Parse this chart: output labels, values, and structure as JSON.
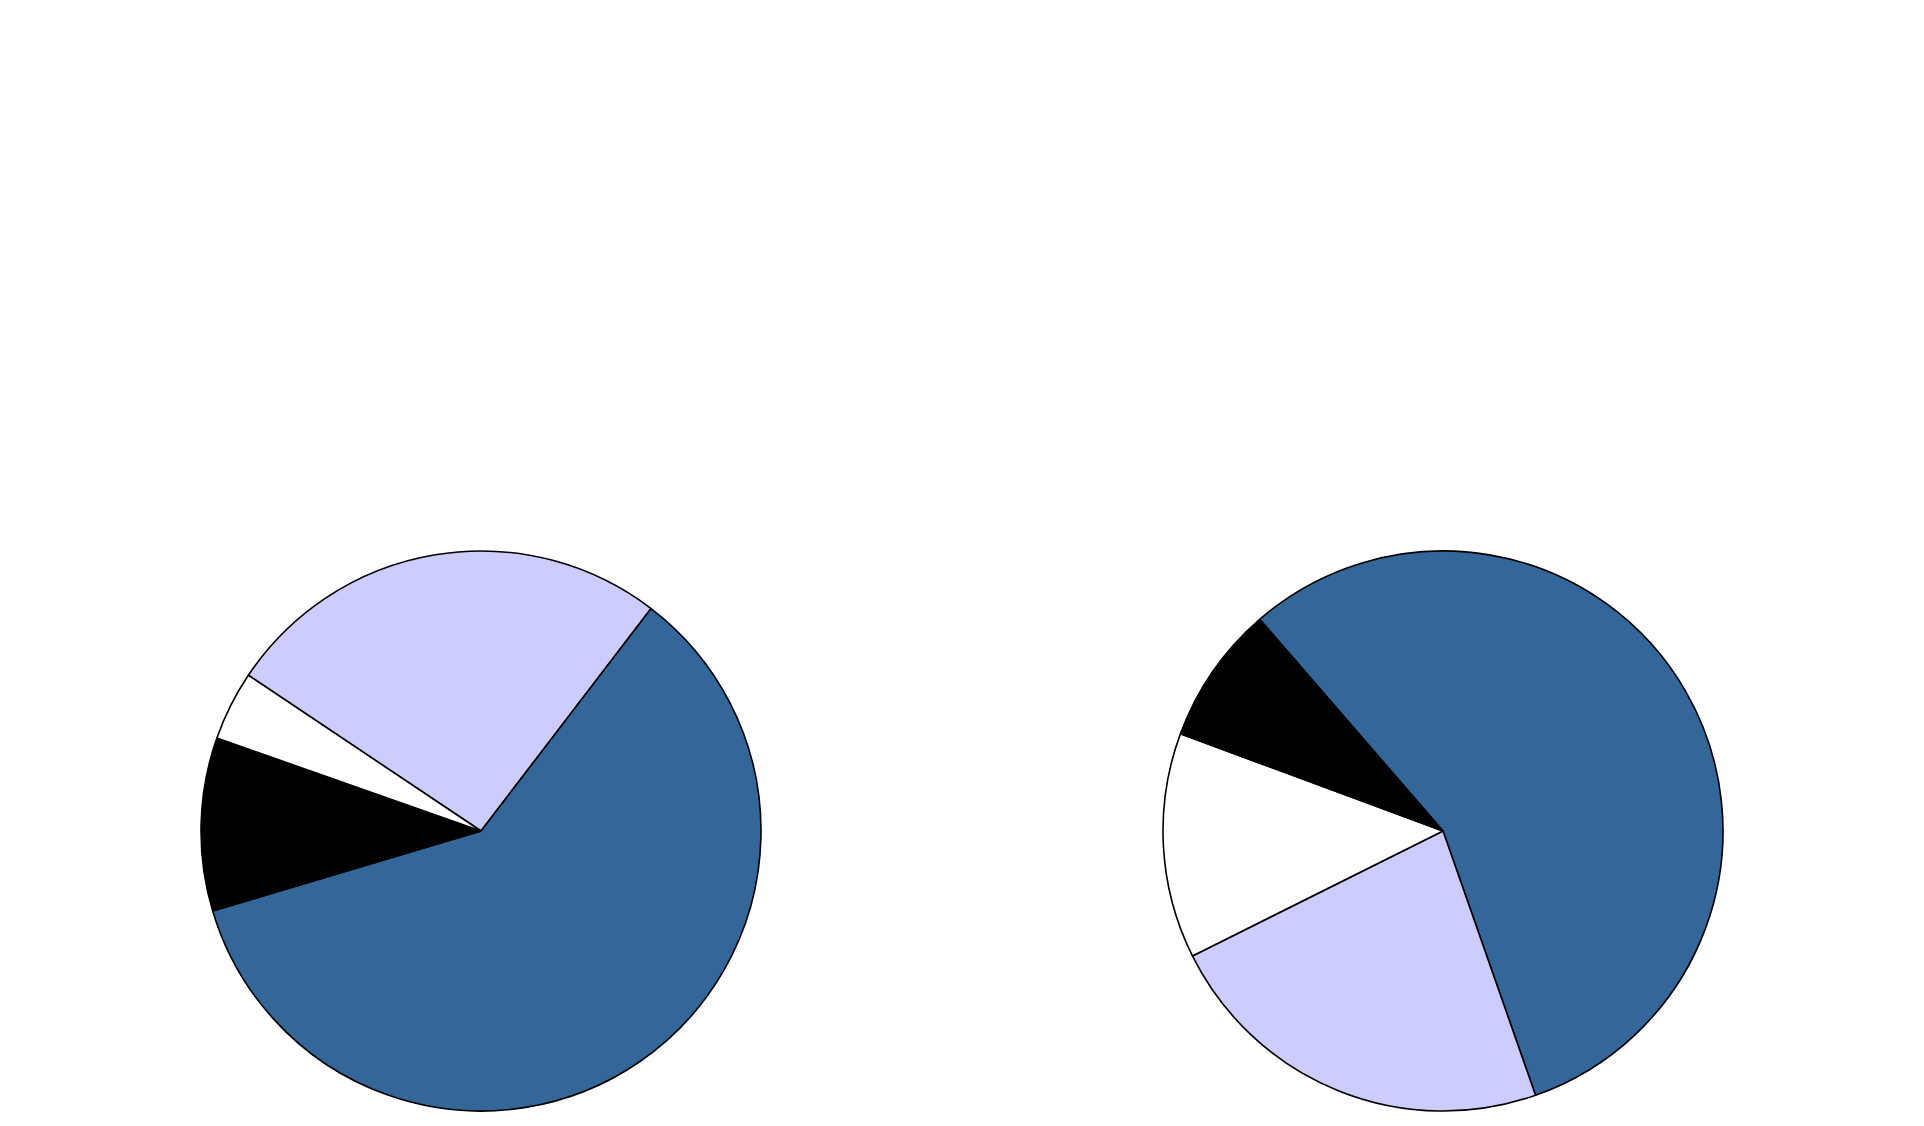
{
  "chart_data": [
    {
      "type": "pie",
      "categories": [
        null,
        null,
        null,
        null
      ],
      "values": [
        26,
        60,
        10,
        4
      ],
      "colors": [
        "#ccccff",
        "#336699",
        "#000000",
        "#ffffff"
      ]
    },
    {
      "type": "pie",
      "categories": [
        null,
        null,
        null,
        null
      ],
      "values": [
        56,
        23,
        13,
        8
      ],
      "colors": [
        "#336699",
        "#ccccff",
        "#ffffff",
        "#000000"
      ]
    }
  ]
}
